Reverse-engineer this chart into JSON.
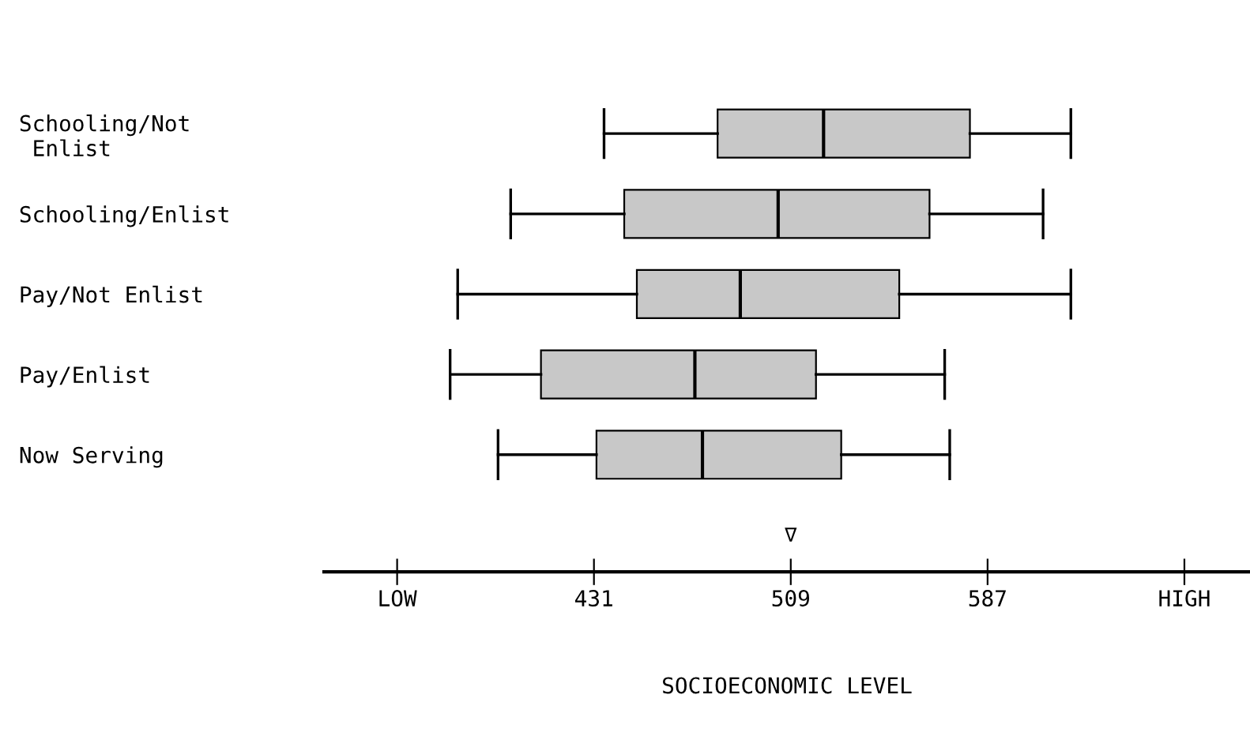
{
  "chart_data": {
    "type": "box",
    "orientation": "horizontal",
    "categories": [
      "Schooling/Not\n Enlist",
      "Schooling/Enlist",
      "Pay/Not Enlist",
      "Pay/Enlist",
      "Now Serving"
    ],
    "boxes": [
      {
        "low": 435,
        "q1": 480,
        "median": 522,
        "q3": 580,
        "high": 620
      },
      {
        "low": 398,
        "q1": 443,
        "median": 504,
        "q3": 564,
        "high": 609
      },
      {
        "low": 377,
        "q1": 448,
        "median": 489,
        "q3": 552,
        "high": 620
      },
      {
        "low": 374,
        "q1": 410,
        "median": 471,
        "q3": 519,
        "high": 570
      },
      {
        "low": 393,
        "q1": 432,
        "median": 474,
        "q3": 529,
        "high": 572
      }
    ],
    "xlabel": "SOCIOECONOMIC LEVEL",
    "xlim": [
      324,
      691
    ],
    "xticks": [
      {
        "value": 353,
        "label": "LOW"
      },
      431,
      509,
      587,
      {
        "value": 665,
        "label": "HIGH"
      }
    ],
    "color": "#c8c8c8",
    "annotations": [
      "∇"
    ],
    "grid": false,
    "legend": false
  }
}
